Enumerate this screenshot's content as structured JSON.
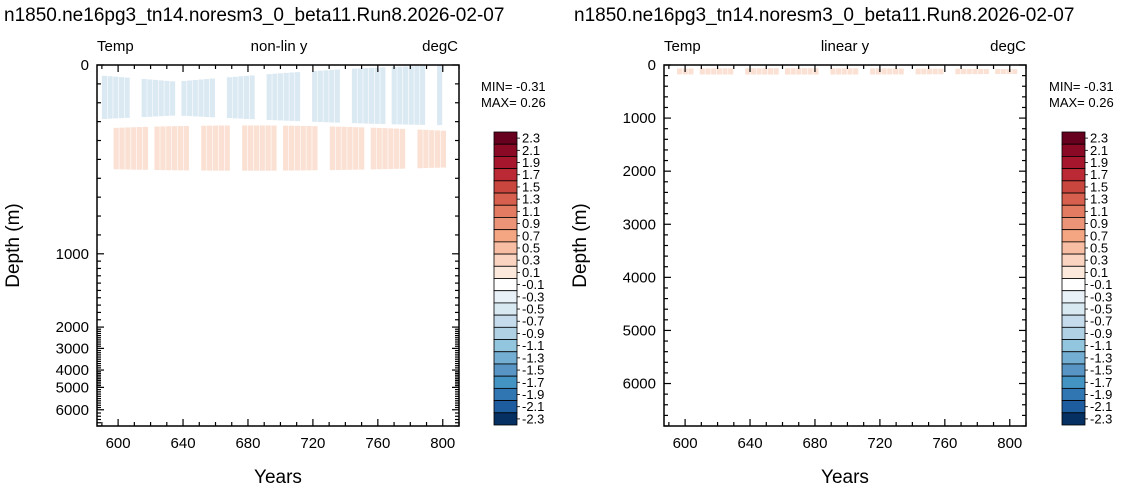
{
  "panels": [
    {
      "title": "n1850.ne16pg3_tn14.noresm3_0_beta11.Run8.2026-02-07",
      "left_label": "Temp",
      "center_label": "non-lin y",
      "right_label": "degC",
      "min_label": "MIN= -0.31",
      "max_label": "MAX=  0.26"
    },
    {
      "title": "n1850.ne16pg3_tn14.noresm3_0_beta11.Run8.2026-02-07",
      "left_label": "Temp",
      "center_label": "linear y",
      "right_label": "degC",
      "min_label": "MIN= -0.31",
      "max_label": "MAX=  0.26"
    }
  ],
  "chart_data": [
    {
      "type": "heatmap",
      "title": "n1850.ne16pg3_tn14.noresm3_0_beta11.Run8.2026-02-07",
      "xlabel": "Years",
      "ylabel": "Depth (m)",
      "xlim": [
        587,
        810
      ],
      "xticks": [
        600,
        640,
        680,
        720,
        760,
        800
      ],
      "ylim": [
        6500,
        0
      ],
      "yscale": "non-linear",
      "yticks": [
        0,
        1000,
        2000,
        3000,
        4000,
        5000,
        6000
      ],
      "grid": false,
      "colorbar_levels": [
        "2.3",
        "2.1",
        "1.9",
        "1.7",
        "1.5",
        "1.3",
        "1.1",
        "0.9",
        "0.7",
        "0.5",
        "0.3",
        "0.1",
        "-0.1",
        "-0.3",
        "-0.5",
        "-0.7",
        "-0.9",
        "-1.1",
        "-1.3",
        "-1.5",
        "-1.7",
        "-1.9",
        "-2.1",
        "-2.3"
      ],
      "colorbar_colors": [
        "#67001f",
        "#8a0a26",
        "#a6172d",
        "#bb2a34",
        "#c9463f",
        "#d6604d",
        "#e27b62",
        "#eb9477",
        "#f4a582",
        "#f8bea3",
        "#fbd4c1",
        "#fde8dc",
        "#ffffff",
        "#e8f1f7",
        "#d9e9f2",
        "#c6dcec",
        "#b0d0e4",
        "#92c5de",
        "#74aed2",
        "#5895c4",
        "#4393c3",
        "#2f76b3",
        "#1c5c9f",
        "#053061"
      ],
      "value_range": [
        -0.31,
        0.26
      ],
      "patches": [
        {
          "sign": "negative",
          "x0": 590,
          "x1": 800,
          "d0": 0,
          "d1": 320
        },
        {
          "sign": "positive",
          "x0": 590,
          "x1": 806,
          "d0": 320,
          "d1": 560
        }
      ]
    },
    {
      "type": "heatmap",
      "title": "n1850.ne16pg3_tn14.noresm3_0_beta11.Run8.2026-02-07",
      "xlabel": "Years",
      "ylabel": "Depth (m)",
      "xlim": [
        587,
        810
      ],
      "xticks": [
        600,
        640,
        680,
        720,
        760,
        800
      ],
      "ylim": [
        6800,
        0
      ],
      "yscale": "linear",
      "yticks": [
        0,
        1000,
        2000,
        3000,
        4000,
        5000,
        6000
      ],
      "grid": false,
      "colorbar_levels": [
        "2.3",
        "2.1",
        "1.9",
        "1.7",
        "1.5",
        "1.3",
        "1.1",
        "0.9",
        "0.7",
        "0.5",
        "0.3",
        "0.1",
        "-0.1",
        "-0.3",
        "-0.5",
        "-0.7",
        "-0.9",
        "-1.1",
        "-1.3",
        "-1.5",
        "-1.7",
        "-1.9",
        "-2.1",
        "-2.3"
      ],
      "colorbar_colors": [
        "#67001f",
        "#8a0a26",
        "#a6172d",
        "#bb2a34",
        "#c9463f",
        "#d6604d",
        "#e27b62",
        "#eb9477",
        "#f4a582",
        "#f8bea3",
        "#fbd4c1",
        "#fde8dc",
        "#ffffff",
        "#e8f1f7",
        "#d9e9f2",
        "#c6dcec",
        "#b0d0e4",
        "#92c5de",
        "#74aed2",
        "#5895c4",
        "#4393c3",
        "#2f76b3",
        "#1c5c9f",
        "#053061"
      ],
      "value_range": [
        -0.31,
        0.26
      ],
      "patches": [
        {
          "sign": "positive",
          "x0": 595,
          "x1": 805,
          "d0": 60,
          "d1": 180
        }
      ]
    }
  ]
}
